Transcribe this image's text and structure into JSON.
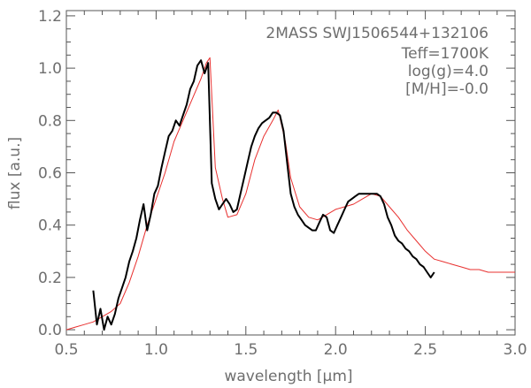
{
  "chart_data": {
    "type": "line",
    "xlabel": "wavelength [µm]",
    "ylabel": "flux [a.u.]",
    "xlim": [
      0.5,
      3.0
    ],
    "ylim": [
      -0.02,
      1.22
    ],
    "x_ticks": [
      0.5,
      1.0,
      1.5,
      2.0,
      2.5,
      3.0
    ],
    "x_tick_labels": [
      "0.5",
      "1.0",
      "1.5",
      "2.0",
      "2.5",
      "3.0"
    ],
    "y_ticks": [
      0.0,
      0.2,
      0.4,
      0.6,
      0.8,
      1.0,
      1.2
    ],
    "y_tick_labels": [
      "0.0",
      "0.2",
      "0.4",
      "0.6",
      "0.8",
      "1.0",
      "1.2"
    ],
    "grid": false,
    "annotations": {
      "object": "2MASS SWJ1506544+132106",
      "teff": "Teff=1700K",
      "logg": "log(g)=4.0",
      "metallicity": "[M/H]=-0.0"
    },
    "series": [
      {
        "color": "#000000",
        "x": [
          0.65,
          0.67,
          0.69,
          0.71,
          0.73,
          0.75,
          0.77,
          0.79,
          0.81,
          0.83,
          0.85,
          0.87,
          0.89,
          0.91,
          0.93,
          0.95,
          0.97,
          0.99,
          1.01,
          1.03,
          1.05,
          1.07,
          1.09,
          1.11,
          1.13,
          1.15,
          1.17,
          1.19,
          1.21,
          1.23,
          1.25,
          1.27,
          1.29,
          1.31,
          1.33,
          1.35,
          1.37,
          1.39,
          1.41,
          1.43,
          1.45,
          1.47,
          1.49,
          1.51,
          1.53,
          1.55,
          1.57,
          1.59,
          1.61,
          1.63,
          1.65,
          1.67,
          1.69,
          1.71,
          1.73,
          1.75,
          1.77,
          1.79,
          1.81,
          1.83,
          1.85,
          1.87,
          1.89,
          1.91,
          1.93,
          1.95,
          1.97,
          1.99,
          2.01,
          2.03,
          2.05,
          2.07,
          2.09,
          2.11,
          2.13,
          2.15,
          2.17,
          2.19,
          2.21,
          2.23,
          2.25,
          2.27,
          2.29,
          2.31,
          2.33,
          2.35,
          2.37,
          2.39,
          2.41,
          2.43,
          2.45,
          2.47,
          2.49,
          2.51,
          2.53,
          2.55
        ],
        "values": [
          0.15,
          0.02,
          0.08,
          0.0,
          0.05,
          0.02,
          0.06,
          0.12,
          0.16,
          0.2,
          0.26,
          0.3,
          0.35,
          0.42,
          0.48,
          0.38,
          0.44,
          0.52,
          0.55,
          0.62,
          0.68,
          0.74,
          0.76,
          0.8,
          0.78,
          0.82,
          0.86,
          0.92,
          0.95,
          1.01,
          1.03,
          0.98,
          1.02,
          0.56,
          0.5,
          0.46,
          0.48,
          0.5,
          0.48,
          0.45,
          0.46,
          0.52,
          0.58,
          0.64,
          0.7,
          0.74,
          0.77,
          0.79,
          0.8,
          0.81,
          0.83,
          0.83,
          0.82,
          0.76,
          0.64,
          0.52,
          0.47,
          0.44,
          0.42,
          0.4,
          0.39,
          0.38,
          0.38,
          0.41,
          0.44,
          0.43,
          0.38,
          0.37,
          0.4,
          0.43,
          0.46,
          0.49,
          0.5,
          0.51,
          0.52,
          0.52,
          0.52,
          0.52,
          0.52,
          0.52,
          0.51,
          0.48,
          0.43,
          0.4,
          0.36,
          0.34,
          0.33,
          0.31,
          0.3,
          0.28,
          0.27,
          0.25,
          0.24,
          0.22,
          0.2,
          0.22
        ]
      },
      {
        "color": "#e8302f",
        "x": [
          0.5,
          0.55,
          0.6,
          0.65,
          0.7,
          0.75,
          0.8,
          0.85,
          0.9,
          0.95,
          1.0,
          1.05,
          1.1,
          1.15,
          1.2,
          1.25,
          1.28,
          1.3,
          1.33,
          1.37,
          1.4,
          1.45,
          1.5,
          1.55,
          1.6,
          1.65,
          1.68,
          1.72,
          1.75,
          1.8,
          1.85,
          1.9,
          1.95,
          2.0,
          2.05,
          2.1,
          2.15,
          2.2,
          2.25,
          2.3,
          2.35,
          2.4,
          2.45,
          2.5,
          2.55,
          2.6,
          2.65,
          2.7,
          2.75,
          2.8,
          2.85,
          2.9,
          2.95,
          3.0
        ],
        "values": [
          0.0,
          0.01,
          0.02,
          0.03,
          0.05,
          0.07,
          0.1,
          0.18,
          0.28,
          0.4,
          0.5,
          0.6,
          0.72,
          0.8,
          0.88,
          0.96,
          1.02,
          1.04,
          0.62,
          0.5,
          0.43,
          0.44,
          0.52,
          0.65,
          0.74,
          0.8,
          0.84,
          0.72,
          0.58,
          0.47,
          0.43,
          0.42,
          0.44,
          0.46,
          0.47,
          0.48,
          0.5,
          0.52,
          0.51,
          0.47,
          0.43,
          0.38,
          0.34,
          0.3,
          0.27,
          0.26,
          0.25,
          0.24,
          0.23,
          0.23,
          0.22,
          0.22,
          0.22,
          0.22
        ]
      }
    ]
  }
}
